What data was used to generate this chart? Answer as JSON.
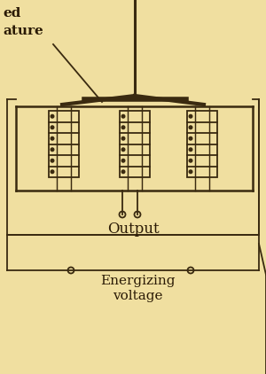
{
  "bg_color": "#f0dfa0",
  "line_color": "#3a2a10",
  "text_color": "#2a1a05",
  "fig_width": 3.0,
  "fig_height": 4.22,
  "dpi": 100,
  "label_output": "Output",
  "label_energizing1": "Energizing",
  "label_energizing2": "voltage"
}
